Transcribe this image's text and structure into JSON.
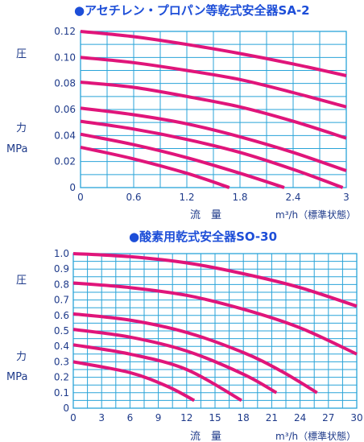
{
  "colors": {
    "accent": "#1d4ed8",
    "curve": "#e0157a",
    "grid": "#29a3d8",
    "text": "#1e3a8a"
  },
  "chart_data": [
    {
      "type": "line",
      "title": "●アセチレン・プロパン等乾式安全器SA-2",
      "ylabel_lines": [
        "圧",
        "力",
        "MPa"
      ],
      "xlabel_left": "流　量",
      "xlabel_right": "m³/h（標準状態）",
      "x_ticks": [
        "0",
        "0.6",
        "1.2",
        "1.8",
        "2.4",
        "3"
      ],
      "y_ticks": [
        "0",
        "0.02",
        "0.04",
        "0.06",
        "0.08",
        "0.10",
        "0.12"
      ],
      "xlim": [
        0,
        3
      ],
      "ylim": [
        0,
        0.12
      ],
      "x_grid_step": 0.3,
      "y_grid_step": 0.01,
      "grid": true,
      "series": [
        {
          "x": [
            0,
            0.6,
            1.2,
            1.8,
            2.4,
            3.0
          ],
          "y": [
            0.12,
            0.116,
            0.11,
            0.103,
            0.095,
            0.086
          ]
        },
        {
          "x": [
            0,
            0.6,
            1.2,
            1.8,
            2.4,
            3.0
          ],
          "y": [
            0.1,
            0.096,
            0.09,
            0.083,
            0.073,
            0.062
          ]
        },
        {
          "x": [
            0,
            0.6,
            1.2,
            1.8,
            2.4,
            3.0
          ],
          "y": [
            0.081,
            0.077,
            0.07,
            0.062,
            0.051,
            0.038
          ]
        },
        {
          "x": [
            0,
            0.6,
            1.2,
            1.8,
            2.4,
            3.0
          ],
          "y": [
            0.061,
            0.056,
            0.049,
            0.039,
            0.027,
            0.013
          ]
        },
        {
          "x": [
            0,
            0.6,
            1.2,
            1.8,
            2.4,
            2.96
          ],
          "y": [
            0.051,
            0.045,
            0.037,
            0.027,
            0.014,
            0.0
          ]
        },
        {
          "x": [
            0,
            0.6,
            1.2,
            1.8,
            2.3
          ],
          "y": [
            0.041,
            0.033,
            0.023,
            0.011,
            0.0
          ]
        },
        {
          "x": [
            0,
            0.6,
            1.2,
            1.68
          ],
          "y": [
            0.031,
            0.022,
            0.011,
            0.0
          ]
        }
      ]
    },
    {
      "type": "line",
      "title": "●酸素用乾式安全器SO-30",
      "ylabel_lines": [
        "圧",
        "力",
        "MPa"
      ],
      "xlabel_left": "流　量",
      "xlabel_right": "m³/h（標準状態）",
      "x_ticks": [
        "0",
        "3",
        "6",
        "9",
        "12",
        "15",
        "18",
        "21",
        "24",
        "27",
        "30"
      ],
      "y_ticks": [
        "0",
        "0.1",
        "0.2",
        "0.3",
        "0.4",
        "0.5",
        "0.6",
        "0.7",
        "0.8",
        "0.9",
        "1.0"
      ],
      "xlim": [
        0,
        30
      ],
      "ylim": [
        0,
        1.0
      ],
      "x_grid_step": 1.5,
      "y_grid_step": 0.05,
      "grid": true,
      "series": [
        {
          "x": [
            0,
            6,
            12,
            18,
            24,
            30
          ],
          "y": [
            1.0,
            0.98,
            0.94,
            0.87,
            0.78,
            0.66
          ]
        },
        {
          "x": [
            0,
            6,
            12,
            18,
            24,
            30
          ],
          "y": [
            0.81,
            0.78,
            0.73,
            0.64,
            0.52,
            0.35
          ]
        },
        {
          "x": [
            0,
            6,
            12,
            18,
            22,
            25.8
          ],
          "y": [
            0.61,
            0.57,
            0.49,
            0.36,
            0.24,
            0.1
          ]
        },
        {
          "x": [
            0,
            6,
            12,
            18,
            21.5
          ],
          "y": [
            0.51,
            0.46,
            0.37,
            0.22,
            0.1
          ]
        },
        {
          "x": [
            0,
            6,
            12,
            17.8
          ],
          "y": [
            0.41,
            0.35,
            0.25,
            0.05
          ]
        },
        {
          "x": [
            0,
            6,
            10,
            12.8
          ],
          "y": [
            0.3,
            0.23,
            0.14,
            0.05
          ]
        }
      ]
    }
  ]
}
